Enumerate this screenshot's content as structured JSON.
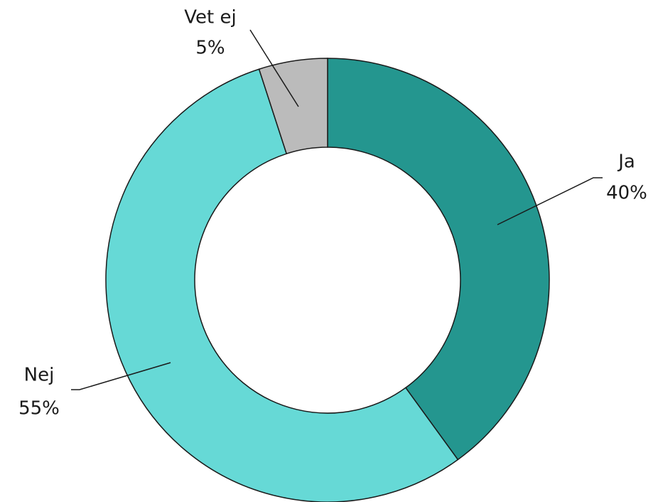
{
  "chart_data": {
    "type": "donut",
    "categories": [
      "Ja",
      "Nej",
      "Vet ej"
    ],
    "values": [
      40,
      55,
      5
    ],
    "value_labels": [
      "40%",
      "55%",
      "5%"
    ],
    "colors": [
      "#24968f",
      "#66d9d6",
      "#bbbbbb"
    ]
  }
}
